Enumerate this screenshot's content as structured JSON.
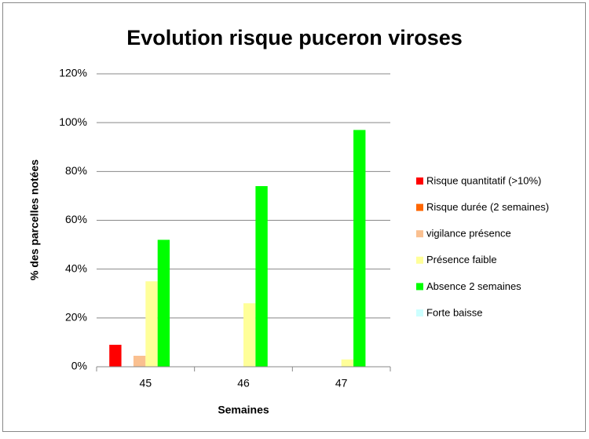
{
  "chart_data": {
    "type": "bar",
    "title": "Evolution risque puceron viroses",
    "x_label": "Semaines",
    "y_label": "% des parcelles notées",
    "categories": [
      "45",
      "46",
      "47"
    ],
    "series": [
      {
        "name": "Risque quantitatif (>10%)",
        "color": "#ff0000",
        "values": [
          9,
          0,
          0
        ]
      },
      {
        "name": "Risque durée (2 semaines)",
        "color": "#ff6600",
        "values": [
          0,
          0,
          0
        ]
      },
      {
        "name": "vigilance présence",
        "color": "#fac090",
        "values": [
          4.5,
          0,
          0
        ]
      },
      {
        "name": "Présence faible",
        "color": "#ffff99",
        "values": [
          35,
          26,
          3
        ]
      },
      {
        "name": "Absence 2 semaines",
        "color": "#00ff00",
        "values": [
          52,
          74,
          97
        ]
      },
      {
        "name": "Forte baisse",
        "color": "#ccffff",
        "values": [
          0,
          0,
          0
        ]
      }
    ],
    "ylim": [
      0,
      120
    ],
    "yticks": [
      {
        "value": 0,
        "label": "0%"
      },
      {
        "value": 20,
        "label": "20%"
      },
      {
        "value": 40,
        "label": "40%"
      },
      {
        "value": 60,
        "label": "60%"
      },
      {
        "value": 80,
        "label": "80%"
      },
      {
        "value": 100,
        "label": "100%"
      },
      {
        "value": 120,
        "label": "120%"
      }
    ],
    "grid": true,
    "legend": "right"
  }
}
